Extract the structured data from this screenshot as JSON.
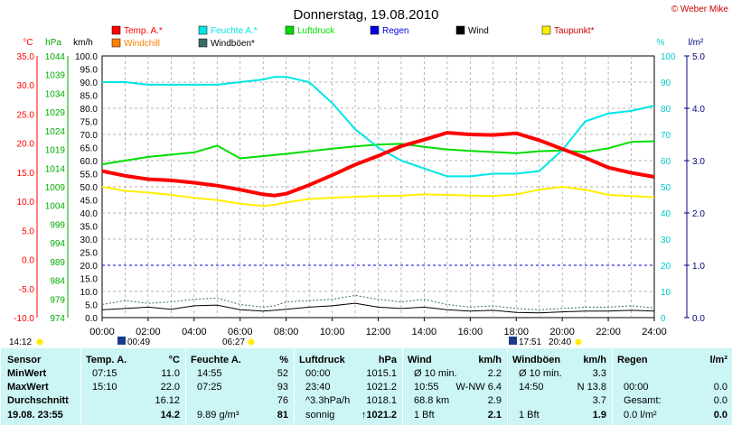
{
  "header": {
    "title": "Donnerstag, 19.08.2010",
    "credit": "© Weber Mike"
  },
  "legend": [
    {
      "label": "Temp. A.*",
      "color": "#ff0000"
    },
    {
      "label": "Feuchte A.*",
      "color": "#00e5e5"
    },
    {
      "label": "Luftdruck",
      "color": "#00dd00"
    },
    {
      "label": "Regen",
      "color": "#0000dd"
    },
    {
      "label": "Wind",
      "color": "#000000"
    },
    {
      "label": "Taupunkt*",
      "color": "#ffee00"
    },
    {
      "label": "Windchill",
      "color": "#ff7f00"
    },
    {
      "label": "Windböen*",
      "color": "#3a6b6b"
    }
  ],
  "axes": {
    "temp": {
      "unit": "°C",
      "ticks": [
        "35.0",
        "30.0",
        "25.0",
        "20.0",
        "15.0",
        "10.0",
        "5.0",
        "0.0",
        "-5.0",
        "-10.0"
      ],
      "color": "#ff0000"
    },
    "pressure": {
      "unit": "hPa",
      "ticks": [
        "1044",
        "1039",
        "1034",
        "1029",
        "1024",
        "1019",
        "1014",
        "1009",
        "1004",
        "999",
        "994",
        "989",
        "984",
        "979",
        "974"
      ],
      "color": "#00aa00"
    },
    "wind": {
      "unit": "km/h",
      "ticks": [
        "100.0",
        "95.0",
        "90.0",
        "85.0",
        "80.0",
        "75.0",
        "70.0",
        "65.0",
        "60.0",
        "55.0",
        "50.0",
        "45.0",
        "40.0",
        "35.0",
        "30.0",
        "25.0",
        "20.0",
        "15.0",
        "10.0",
        "5.0",
        "0.0"
      ],
      "color": "#000000"
    },
    "humidity": {
      "unit": "%",
      "ticks": [
        "100",
        "90",
        "80",
        "70",
        "60",
        "50",
        "40",
        "30",
        "20",
        "10",
        "0"
      ],
      "color": "#00cccc"
    },
    "rain": {
      "unit": "l/m²",
      "ticks": [
        "5.0",
        "4.0",
        "3.0",
        "2.0",
        "1.0",
        "0.0"
      ],
      "color": "#000080"
    },
    "x": {
      "ticks": [
        "00:00",
        "02:00",
        "04:00",
        "06:00",
        "08:00",
        "10:00",
        "12:00",
        "14:00",
        "16:00",
        "18:00",
        "20:00",
        "22:00",
        "24:00"
      ]
    }
  },
  "sun": {
    "sunrise_left": "14:12",
    "moon_left": "00:49",
    "sunrise": "06:27",
    "sunset": "17:51",
    "moonrise": "20:40"
  },
  "chart_data": {
    "type": "line",
    "x_unit": "hours",
    "x": [
      0,
      1,
      2,
      3,
      4,
      5,
      6,
      7,
      7.5,
      8,
      9,
      10,
      11,
      12,
      13,
      14,
      15,
      16,
      17,
      18,
      19,
      20,
      21,
      22,
      23,
      24
    ],
    "series": [
      {
        "name": "Temp. A.*",
        "axis": "temp",
        "values": [
          15.2,
          14.4,
          13.8,
          13.6,
          13.2,
          12.7,
          12.0,
          11.2,
          11.0,
          11.3,
          12.8,
          14.5,
          16.3,
          17.8,
          19.5,
          20.6,
          21.8,
          21.5,
          21.4,
          21.7,
          20.5,
          19.0,
          17.5,
          15.8,
          14.9,
          14.2
        ]
      },
      {
        "name": "Feuchte A.*",
        "axis": "humidity",
        "values": [
          90,
          90,
          89,
          89,
          89,
          89,
          90,
          91,
          92,
          92,
          90,
          82,
          72,
          65,
          60,
          57,
          54,
          54,
          55,
          55,
          56,
          64,
          75,
          78,
          79,
          81
        ]
      },
      {
        "name": "Luftdruck",
        "axis": "pressure",
        "values": [
          1015.0,
          1016.0,
          1017.0,
          1017.6,
          1018.2,
          1020.0,
          1016.6,
          1017.2,
          1017.5,
          1017.8,
          1018.5,
          1019.2,
          1019.8,
          1020.3,
          1020.5,
          1019.7,
          1019.0,
          1018.6,
          1018.3,
          1018.0,
          1018.5,
          1018.7,
          1018.3,
          1019.3,
          1021.0,
          1021.2
        ]
      },
      {
        "name": "Taupunkt*",
        "axis": "temp",
        "values": [
          12.5,
          11.8,
          11.5,
          11.1,
          10.6,
          10.2,
          9.6,
          9.2,
          9.4,
          9.8,
          10.4,
          10.6,
          10.8,
          10.9,
          11.0,
          11.2,
          11.1,
          11.0,
          10.9,
          11.2,
          12.0,
          12.5,
          12.0,
          11.1,
          10.9,
          10.7
        ]
      },
      {
        "name": "Wind",
        "axis": "wind",
        "values": [
          3.0,
          3.5,
          4.0,
          3.2,
          4.5,
          4.8,
          3.0,
          2.5,
          2.8,
          3.2,
          4.0,
          4.5,
          5.5,
          4.0,
          3.5,
          4.0,
          3.0,
          2.5,
          2.8,
          2.0,
          1.8,
          2.2,
          2.5,
          2.5,
          2.8,
          2.5
        ]
      },
      {
        "name": "Windböen*",
        "axis": "wind",
        "values": [
          5.0,
          6.5,
          5.5,
          6.0,
          7.0,
          7.5,
          5.0,
          4.0,
          4.5,
          6.0,
          6.5,
          7.0,
          8.5,
          7.0,
          6.0,
          7.0,
          5.0,
          4.0,
          4.5,
          3.5,
          3.0,
          3.5,
          4.0,
          4.0,
          4.5,
          3.7
        ]
      },
      {
        "name": "Regen",
        "axis": "rain",
        "values": [
          1,
          1,
          1,
          1,
          1,
          1,
          1,
          1,
          1,
          1,
          1,
          1,
          1,
          1,
          1,
          1,
          1,
          1,
          1,
          1,
          1,
          1,
          1,
          1,
          1,
          1
        ]
      }
    ],
    "ylim": {
      "temp": [
        -10,
        35
      ],
      "pressure": [
        974,
        1044
      ],
      "wind": [
        0,
        100
      ],
      "humidity": [
        0,
        100
      ],
      "rain": [
        0,
        5
      ]
    },
    "xlim": [
      0,
      24
    ],
    "grid": true
  },
  "table": {
    "rows": [
      "Sensor",
      "MinWert",
      "MaxWert",
      "Durchschnitt",
      "19.08. 23:55"
    ],
    "columns": [
      {
        "header": "Temp. A.",
        "unit": "°C",
        "cells": [
          [
            "07:15",
            "11.0"
          ],
          [
            "15:10",
            "22.0"
          ],
          [
            "",
            "16.12"
          ],
          [
            "",
            "14.2"
          ]
        ]
      },
      {
        "header": "Feuchte A.",
        "unit": "%",
        "cells": [
          [
            "14:55",
            "52"
          ],
          [
            "07:25",
            "93"
          ],
          [
            "",
            "76"
          ],
          [
            "9.89 g/m³",
            "81"
          ]
        ]
      },
      {
        "header": "Luftdruck",
        "unit": "hPa",
        "cells": [
          [
            "00:00",
            "1015.1"
          ],
          [
            "23:40",
            "1021.2"
          ],
          [
            "^3.3hPa/h",
            "1018.1"
          ],
          [
            "sonnig",
            "↑1021.2"
          ]
        ]
      },
      {
        "header": "Wind",
        "unit": "km/h",
        "cells": [
          [
            "Ø 10 min.",
            "2.2"
          ],
          [
            "10:55",
            "W-NW 6.4"
          ],
          [
            "68.8 km",
            "2.9"
          ],
          [
            "1 Bft",
            "2.1"
          ]
        ]
      },
      {
        "header": "Windböen",
        "unit": "km/h",
        "cells": [
          [
            "Ø 10 min.",
            "3.3"
          ],
          [
            "14:50",
            "N 13.8"
          ],
          [
            "",
            "3.7"
          ],
          [
            "1 Bft",
            "1.9"
          ]
        ]
      },
      {
        "header": "Regen",
        "unit": "l/m²",
        "cells": [
          [
            "",
            ""
          ],
          [
            "00:00",
            "0.0"
          ],
          [
            "Gesamt:",
            "0.0"
          ],
          [
            "0.0 l/m²",
            "0.0"
          ]
        ]
      }
    ]
  }
}
